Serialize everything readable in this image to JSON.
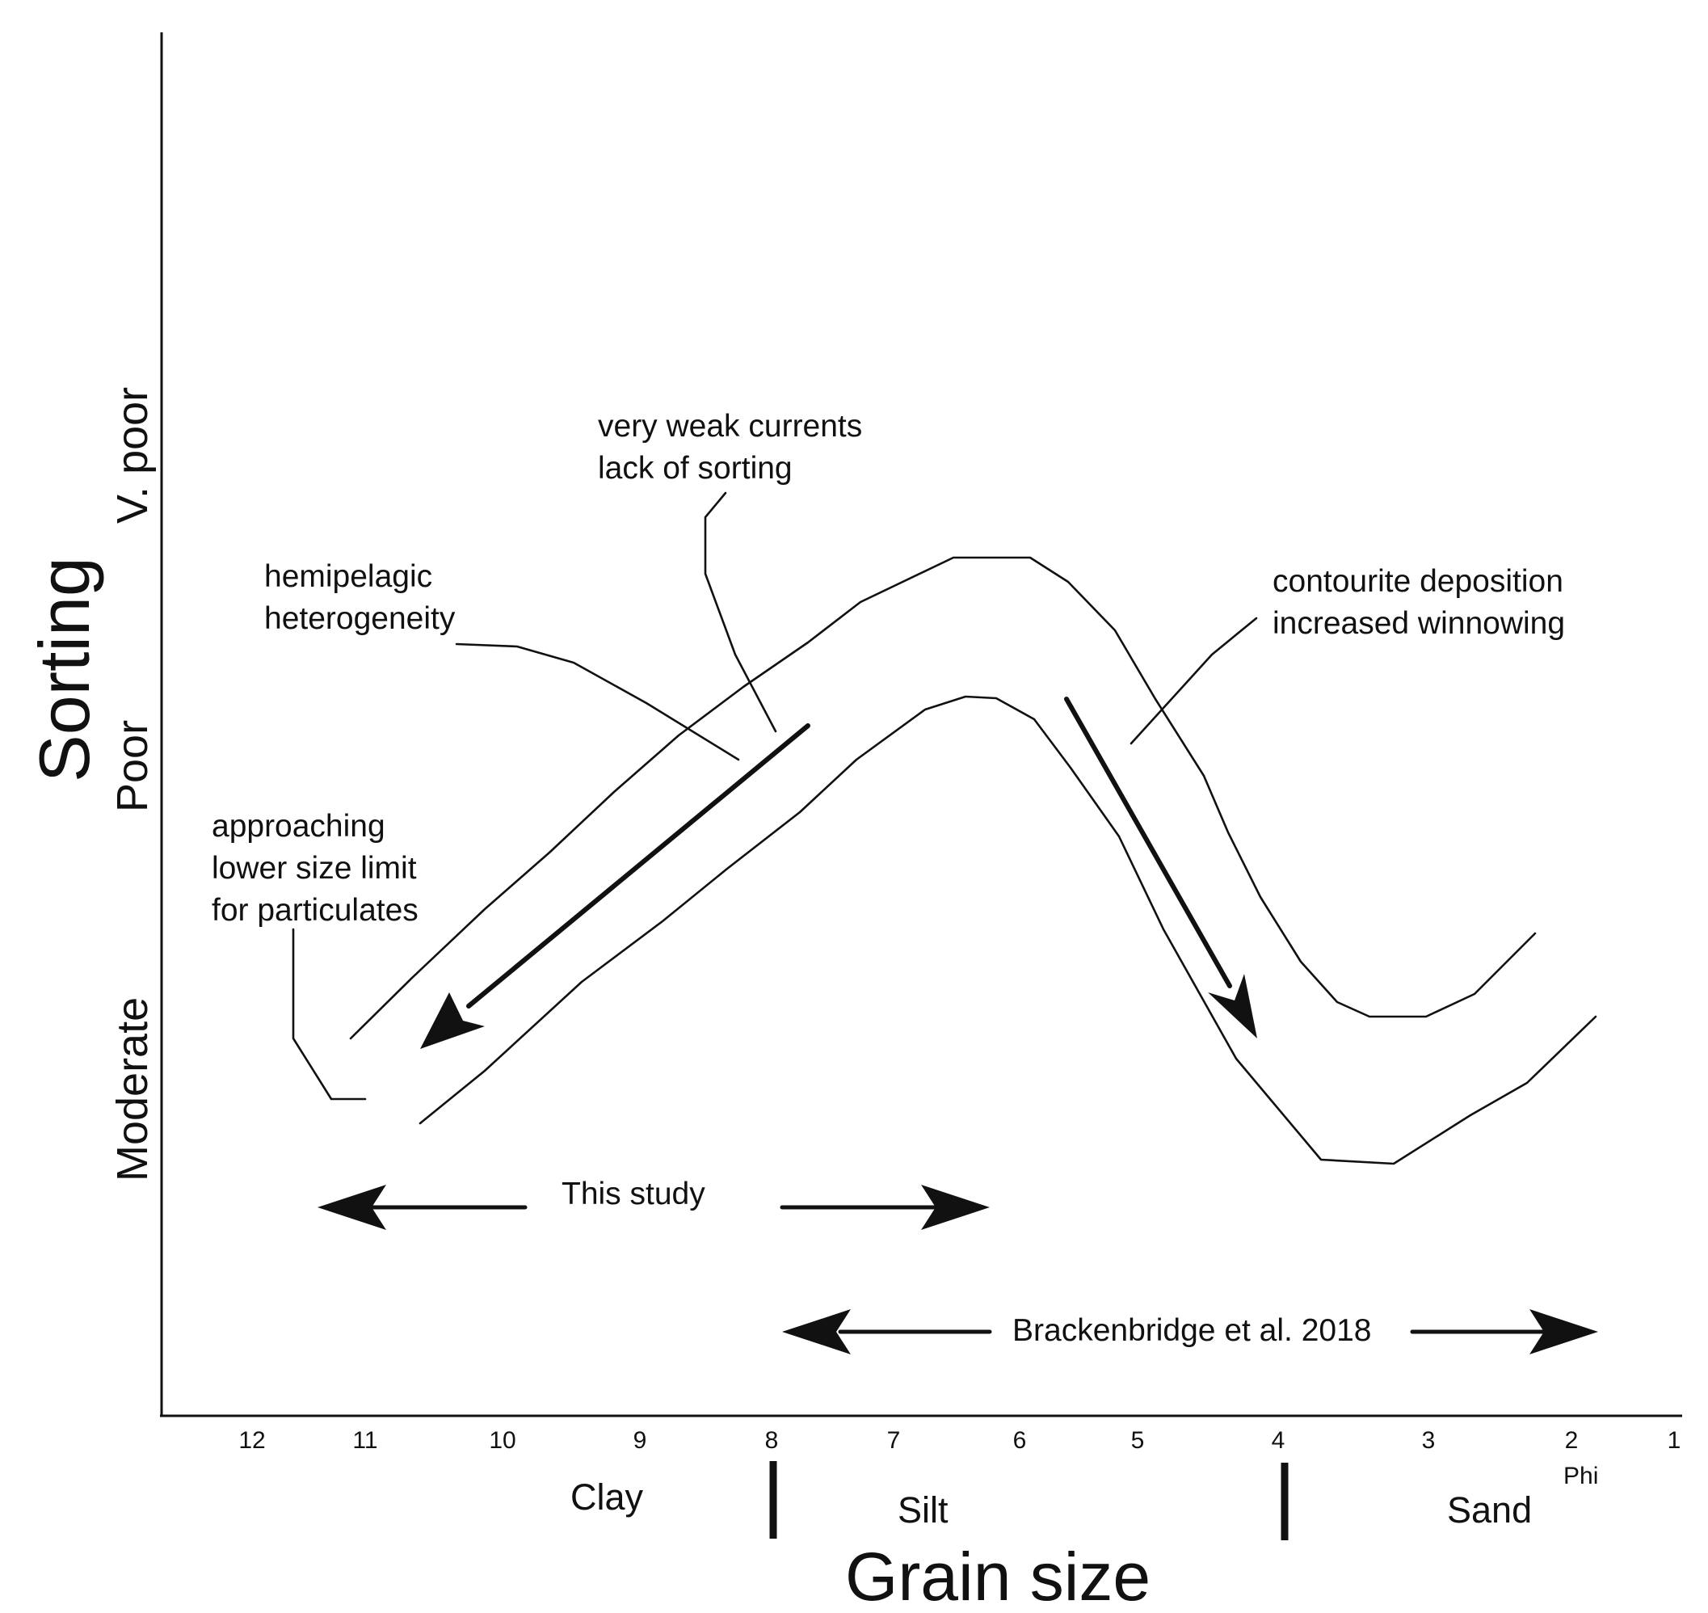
{
  "axes": {
    "x_title": "Grain size",
    "y_title": "Sorting",
    "x_unit": "Phi",
    "x_ticks": [
      "12",
      "11",
      "10",
      "9",
      "8",
      "7",
      "6",
      "5",
      "4",
      "3",
      "2",
      "1"
    ],
    "y_levels": [
      "Moderate",
      "Poor",
      "V. poor"
    ],
    "size_classes": [
      "Clay",
      "Silt",
      "Sand"
    ]
  },
  "annotations": {
    "hemipelagic": [
      "hemipelagic",
      "heterogeneity"
    ],
    "weak_currents": [
      "very weak currents",
      "lack of sorting"
    ],
    "contourite": [
      "contourite deposition",
      "increased winnowing"
    ],
    "lower_limit": [
      "approaching",
      "lower size limit",
      "for particulates"
    ]
  },
  "ranges": {
    "this_study": "This study",
    "brackenbridge": "Brackenbridge et al. 2018"
  }
}
